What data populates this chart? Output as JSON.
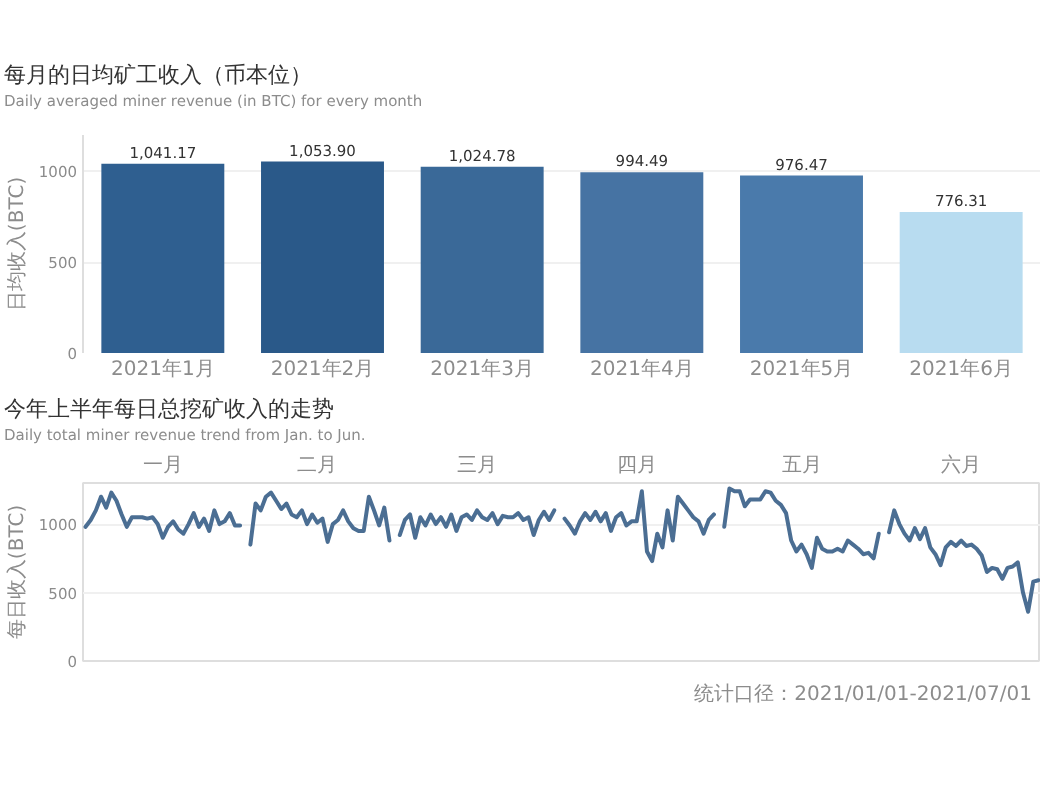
{
  "chart_data": [
    {
      "type": "bar",
      "title": "每月的日均矿工收入（币本位）",
      "subtitle": "Daily averaged miner revenue (in BTC) for every month",
      "ylabel": "日均收入(BTC)",
      "categories": [
        "2021年1月",
        "2021年2月",
        "2021年3月",
        "2021年4月",
        "2021年5月",
        "2021年6月"
      ],
      "values": [
        1041.17,
        1053.9,
        1024.78,
        994.49,
        976.47,
        776.31
      ],
      "colors": [
        "#2f5f90",
        "#2a5989",
        "#3a6998",
        "#4673a3",
        "#4a7aab",
        "#b8dcf0"
      ],
      "value_labels": [
        "1,041.17",
        "1,053.90",
        "1,024.78",
        "994.49",
        "976.47",
        "776.31"
      ],
      "ylim": [
        0,
        1200
      ],
      "yticks": [
        0,
        500,
        1000
      ],
      "grid": "y"
    },
    {
      "type": "line",
      "title": "今年上半年每日总挖矿收入的走势",
      "subtitle": "Daily total miner revenue trend from Jan. to Jun.",
      "ylabel": "每日收入(BTC)",
      "annotations": [
        "统计口径：2021/01/01-2021/07/01"
      ],
      "ylim": [
        0,
        1300
      ],
      "yticks": [
        0,
        500,
        1000
      ],
      "grid": "y",
      "categories": [
        null,
        null,
        null,
        null,
        null,
        null,
        null,
        null,
        null,
        null,
        null,
        null,
        null,
        null,
        null,
        "一月",
        null,
        null,
        null,
        null,
        null,
        null,
        null,
        null,
        null,
        null,
        null,
        null,
        null,
        null,
        null,
        null,
        null,
        null,
        null,
        null,
        null,
        null,
        null,
        null,
        null,
        null,
        null,
        null,
        null,
        "二月",
        null,
        null,
        null,
        null,
        null,
        null,
        null,
        null,
        null,
        null,
        null,
        null,
        null,
        null,
        null,
        null,
        null,
        null,
        null,
        null,
        null,
        null,
        null,
        null,
        null,
        null,
        null,
        null,
        null,
        null,
        "三月",
        null,
        null,
        null,
        null,
        null,
        null,
        null,
        null,
        null,
        null,
        null,
        null,
        null,
        null,
        null,
        null,
        null,
        null,
        null,
        null,
        null,
        null,
        null,
        null,
        null,
        null,
        null,
        null,
        null,
        null,
        "四月",
        null,
        null,
        null,
        null,
        null,
        null,
        null,
        null,
        null,
        null,
        null,
        null,
        null,
        null,
        null,
        null,
        null,
        null,
        null,
        null,
        null,
        null,
        null,
        null,
        null,
        null,
        null,
        null,
        null,
        null,
        null,
        "五月",
        null,
        null,
        null,
        null,
        null,
        null,
        null,
        null,
        null,
        null,
        null,
        null,
        null,
        null,
        null,
        null,
        null,
        null,
        null,
        null,
        null,
        null,
        null,
        null,
        null,
        null,
        null,
        null,
        null,
        null,
        "六月",
        null,
        null,
        null,
        null,
        null,
        null,
        null,
        null,
        null,
        null,
        null,
        null,
        null,
        null,
        null
      ],
      "series": [
        {
          "color": "#4b6e93",
          "values": [
            980,
            1030,
            1100,
            1200,
            1120,
            1230,
            1170,
            1070,
            980,
            1050,
            1050,
            1050,
            1040,
            1050,
            1000,
            900,
            980,
            1020,
            960,
            930,
            1000,
            1080,
            980,
            1040,
            950,
            1100,
            1000,
            1020,
            1080,
            990,
            990,
            null,
            850,
            1150,
            1100,
            1200,
            1230,
            1170,
            1110,
            1150,
            1070,
            1050,
            1100,
            1000,
            1070,
            1010,
            1040,
            870,
            1000,
            1030,
            1100,
            1020,
            970,
            950,
            950,
            1200,
            1100,
            990,
            1120,
            880,
            null,
            920,
            1030,
            1070,
            900,
            1050,
            990,
            1070,
            1000,
            1050,
            980,
            1070,
            950,
            1050,
            1070,
            1030,
            1100,
            1050,
            1030,
            1080,
            1000,
            1060,
            1050,
            1050,
            1080,
            1030,
            1050,
            920,
            1030,
            1090,
            1030,
            1100,
            null,
            1040,
            990,
            930,
            1020,
            1080,
            1030,
            1090,
            1020,
            1080,
            950,
            1050,
            1080,
            990,
            1020,
            1020,
            1240,
            800,
            730,
            930,
            830,
            1100,
            880,
            1200,
            1150,
            1100,
            1050,
            1020,
            930,
            1030,
            1070,
            null,
            980,
            1260,
            1240,
            1240,
            1130,
            1180,
            1180,
            1180,
            1240,
            1230,
            1170,
            1140,
            1080,
            880,
            800,
            850,
            780,
            680,
            900,
            820,
            800,
            800,
            820,
            800,
            880,
            850,
            820,
            780,
            790,
            750,
            930,
            null,
            940,
            1100,
            1000,
            930,
            880,
            970,
            890,
            970,
            830,
            780,
            700,
            830,
            870,
            840,
            880,
            840,
            850,
            820,
            770,
            650,
            680,
            670,
            600,
            680,
            690,
            720,
            500,
            360,
            580,
            590
          ]
        }
      ]
    }
  ]
}
